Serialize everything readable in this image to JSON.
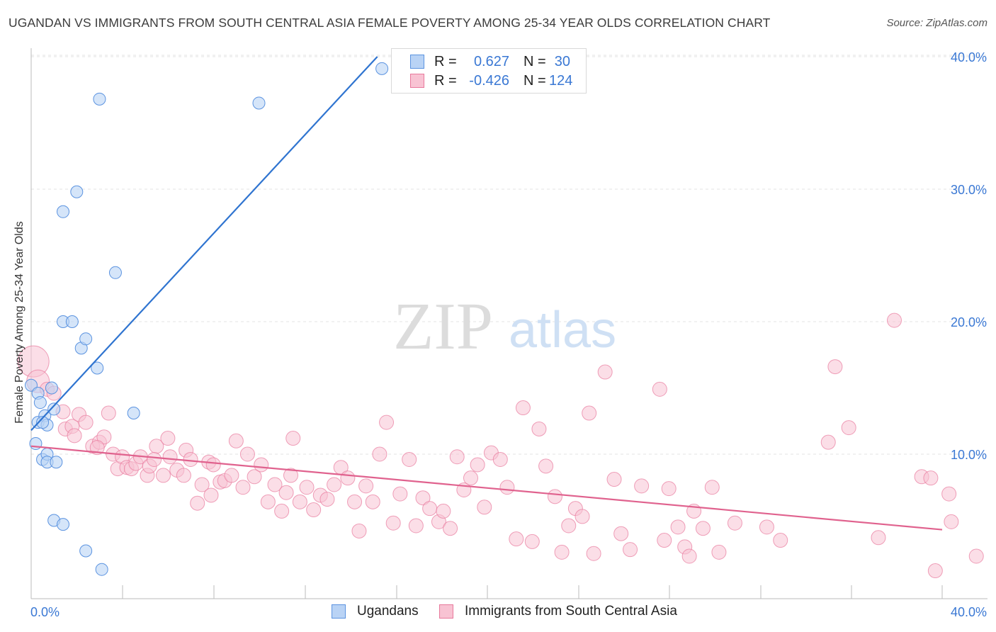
{
  "title": "UGANDAN VS IMMIGRANTS FROM SOUTH CENTRAL ASIA FEMALE POVERTY AMONG 25-34 YEAR OLDS CORRELATION CHART",
  "source": "Source: ZipAtlas.com",
  "watermark": {
    "zip": "ZIP",
    "atlas": "atlas"
  },
  "legend": {
    "r_label": "R =",
    "n_label": "N =",
    "rows": [
      {
        "r": "0.627",
        "n": "30",
        "color": "#5b93e0",
        "fill": "#b9d3f5"
      },
      {
        "r": "-0.426",
        "n": "124",
        "color": "#e8799c",
        "fill": "#f8c3d3"
      }
    ]
  },
  "bottom_legend": [
    "Ugandans",
    "Immigrants from South Central Asia"
  ],
  "chart_data": {
    "type": "scatter",
    "title": "UGANDAN VS IMMIGRANTS FROM SOUTH CENTRAL ASIA FEMALE POVERTY AMONG 25-34 YEAR OLDS CORRELATION CHART",
    "xlabel": "",
    "ylabel": "Female Poverty Among 25-34 Year Olds",
    "xlim": [
      0,
      40
    ],
    "ylim": [
      0,
      40
    ],
    "x_tick_labels": [
      "0.0%",
      "40.0%"
    ],
    "y_tick_labels": [
      "10.0%",
      "20.0%",
      "30.0%",
      "40.0%"
    ],
    "y_ticks": [
      10,
      20,
      30,
      40
    ],
    "grid": true,
    "legend_position": "top-center",
    "series": [
      {
        "name": "Ugandans",
        "color": "#5b93e0",
        "fill": "#b9d3f5",
        "r": 0.627,
        "n": 30,
        "trend": [
          [
            0.0,
            11.8
          ],
          [
            15.2,
            40.0
          ]
        ],
        "points": [
          [
            0.0,
            15.2
          ],
          [
            0.3,
            14.6
          ],
          [
            0.5,
            9.6
          ],
          [
            0.3,
            12.4
          ],
          [
            0.6,
            12.9
          ],
          [
            0.7,
            10.0
          ],
          [
            0.7,
            12.2
          ],
          [
            0.4,
            13.9
          ],
          [
            0.9,
            15.0
          ],
          [
            1.0,
            13.4
          ],
          [
            0.7,
            9.4
          ],
          [
            1.1,
            9.4
          ],
          [
            0.5,
            12.4
          ],
          [
            0.2,
            10.8
          ],
          [
            1.4,
            20.0
          ],
          [
            1.4,
            28.3
          ],
          [
            1.8,
            20.0
          ],
          [
            2.0,
            29.8
          ],
          [
            2.2,
            18.0
          ],
          [
            2.4,
            18.7
          ],
          [
            2.9,
            16.5
          ],
          [
            3.0,
            36.8
          ],
          [
            3.7,
            23.7
          ],
          [
            4.5,
            13.1
          ],
          [
            1.0,
            5.0
          ],
          [
            1.4,
            4.7
          ],
          [
            2.4,
            2.7
          ],
          [
            3.1,
            1.3
          ],
          [
            10.0,
            36.5
          ],
          [
            15.4,
            39.1
          ]
        ]
      },
      {
        "name": "Immigrants from South Central Asia",
        "color": "#e8799c",
        "fill": "#f8c3d3",
        "r": -0.426,
        "n": 124,
        "trend": [
          [
            0.0,
            10.6
          ],
          [
            40.0,
            4.3
          ]
        ],
        "points": [
          [
            0.1,
            17.0
          ],
          [
            0.3,
            15.5
          ],
          [
            0.7,
            14.9
          ],
          [
            1.0,
            14.6
          ],
          [
            1.4,
            13.2
          ],
          [
            1.5,
            11.9
          ],
          [
            1.8,
            12.1
          ],
          [
            1.9,
            11.4
          ],
          [
            2.1,
            13.0
          ],
          [
            2.4,
            12.4
          ],
          [
            2.7,
            10.6
          ],
          [
            3.0,
            10.9
          ],
          [
            3.2,
            11.3
          ],
          [
            3.4,
            13.1
          ],
          [
            3.6,
            10.0
          ],
          [
            3.8,
            8.9
          ],
          [
            4.0,
            9.8
          ],
          [
            4.2,
            9.0
          ],
          [
            4.4,
            8.9
          ],
          [
            4.6,
            9.3
          ],
          [
            4.8,
            9.8
          ],
          [
            5.1,
            8.4
          ],
          [
            5.2,
            9.1
          ],
          [
            5.5,
            10.6
          ],
          [
            5.8,
            8.4
          ],
          [
            6.0,
            11.2
          ],
          [
            6.1,
            9.8
          ],
          [
            6.4,
            8.8
          ],
          [
            6.7,
            8.4
          ],
          [
            6.8,
            10.3
          ],
          [
            7.0,
            9.6
          ],
          [
            7.3,
            6.3
          ],
          [
            7.5,
            7.7
          ],
          [
            7.8,
            9.4
          ],
          [
            8.0,
            9.2
          ],
          [
            8.3,
            7.9
          ],
          [
            8.5,
            8.0
          ],
          [
            8.8,
            8.4
          ],
          [
            9.0,
            11.0
          ],
          [
            9.3,
            7.5
          ],
          [
            9.5,
            10.0
          ],
          [
            9.8,
            8.3
          ],
          [
            10.1,
            9.2
          ],
          [
            10.4,
            6.4
          ],
          [
            10.7,
            7.7
          ],
          [
            11.0,
            5.7
          ],
          [
            11.2,
            7.1
          ],
          [
            11.5,
            11.2
          ],
          [
            11.8,
            6.4
          ],
          [
            12.1,
            7.5
          ],
          [
            12.4,
            5.8
          ],
          [
            12.7,
            6.9
          ],
          [
            13.0,
            6.6
          ],
          [
            13.3,
            7.7
          ],
          [
            13.6,
            9.0
          ],
          [
            13.9,
            8.2
          ],
          [
            14.2,
            6.4
          ],
          [
            14.4,
            4.2
          ],
          [
            14.7,
            7.6
          ],
          [
            15.0,
            6.4
          ],
          [
            15.3,
            10.0
          ],
          [
            15.6,
            12.4
          ],
          [
            15.9,
            4.8
          ],
          [
            16.2,
            7.0
          ],
          [
            16.6,
            9.6
          ],
          [
            16.9,
            4.6
          ],
          [
            17.2,
            6.7
          ],
          [
            17.5,
            5.9
          ],
          [
            17.9,
            4.9
          ],
          [
            18.1,
            5.7
          ],
          [
            18.4,
            4.4
          ],
          [
            18.7,
            9.8
          ],
          [
            19.0,
            7.3
          ],
          [
            19.3,
            8.2
          ],
          [
            19.6,
            9.2
          ],
          [
            19.9,
            6.0
          ],
          [
            20.2,
            10.1
          ],
          [
            20.6,
            9.6
          ],
          [
            20.9,
            7.5
          ],
          [
            21.3,
            3.6
          ],
          [
            21.6,
            13.5
          ],
          [
            22.0,
            3.4
          ],
          [
            22.3,
            11.9
          ],
          [
            22.6,
            9.1
          ],
          [
            23.0,
            6.8
          ],
          [
            23.3,
            2.6
          ],
          [
            23.6,
            4.6
          ],
          [
            23.9,
            5.9
          ],
          [
            24.2,
            5.3
          ],
          [
            24.5,
            13.1
          ],
          [
            24.7,
            2.5
          ],
          [
            25.2,
            16.2
          ],
          [
            25.6,
            8.1
          ],
          [
            25.9,
            4.0
          ],
          [
            26.3,
            2.8
          ],
          [
            26.8,
            7.6
          ],
          [
            27.6,
            14.9
          ],
          [
            27.8,
            3.5
          ],
          [
            28.0,
            7.4
          ],
          [
            28.4,
            4.5
          ],
          [
            28.7,
            3.0
          ],
          [
            28.9,
            2.3
          ],
          [
            29.1,
            5.7
          ],
          [
            29.5,
            4.4
          ],
          [
            29.9,
            7.5
          ],
          [
            30.2,
            2.6
          ],
          [
            30.9,
            4.8
          ],
          [
            32.3,
            4.5
          ],
          [
            32.9,
            3.5
          ],
          [
            35.0,
            10.9
          ],
          [
            35.3,
            16.6
          ],
          [
            35.9,
            12.0
          ],
          [
            37.2,
            3.7
          ],
          [
            37.9,
            20.1
          ],
          [
            39.1,
            8.3
          ],
          [
            39.5,
            8.2
          ],
          [
            40.3,
            7.0
          ],
          [
            40.4,
            4.9
          ],
          [
            39.7,
            1.2
          ],
          [
            41.5,
            2.3
          ],
          [
            2.9,
            10.5
          ],
          [
            5.4,
            9.6
          ],
          [
            7.9,
            6.9
          ],
          [
            11.4,
            8.4
          ]
        ]
      }
    ]
  }
}
